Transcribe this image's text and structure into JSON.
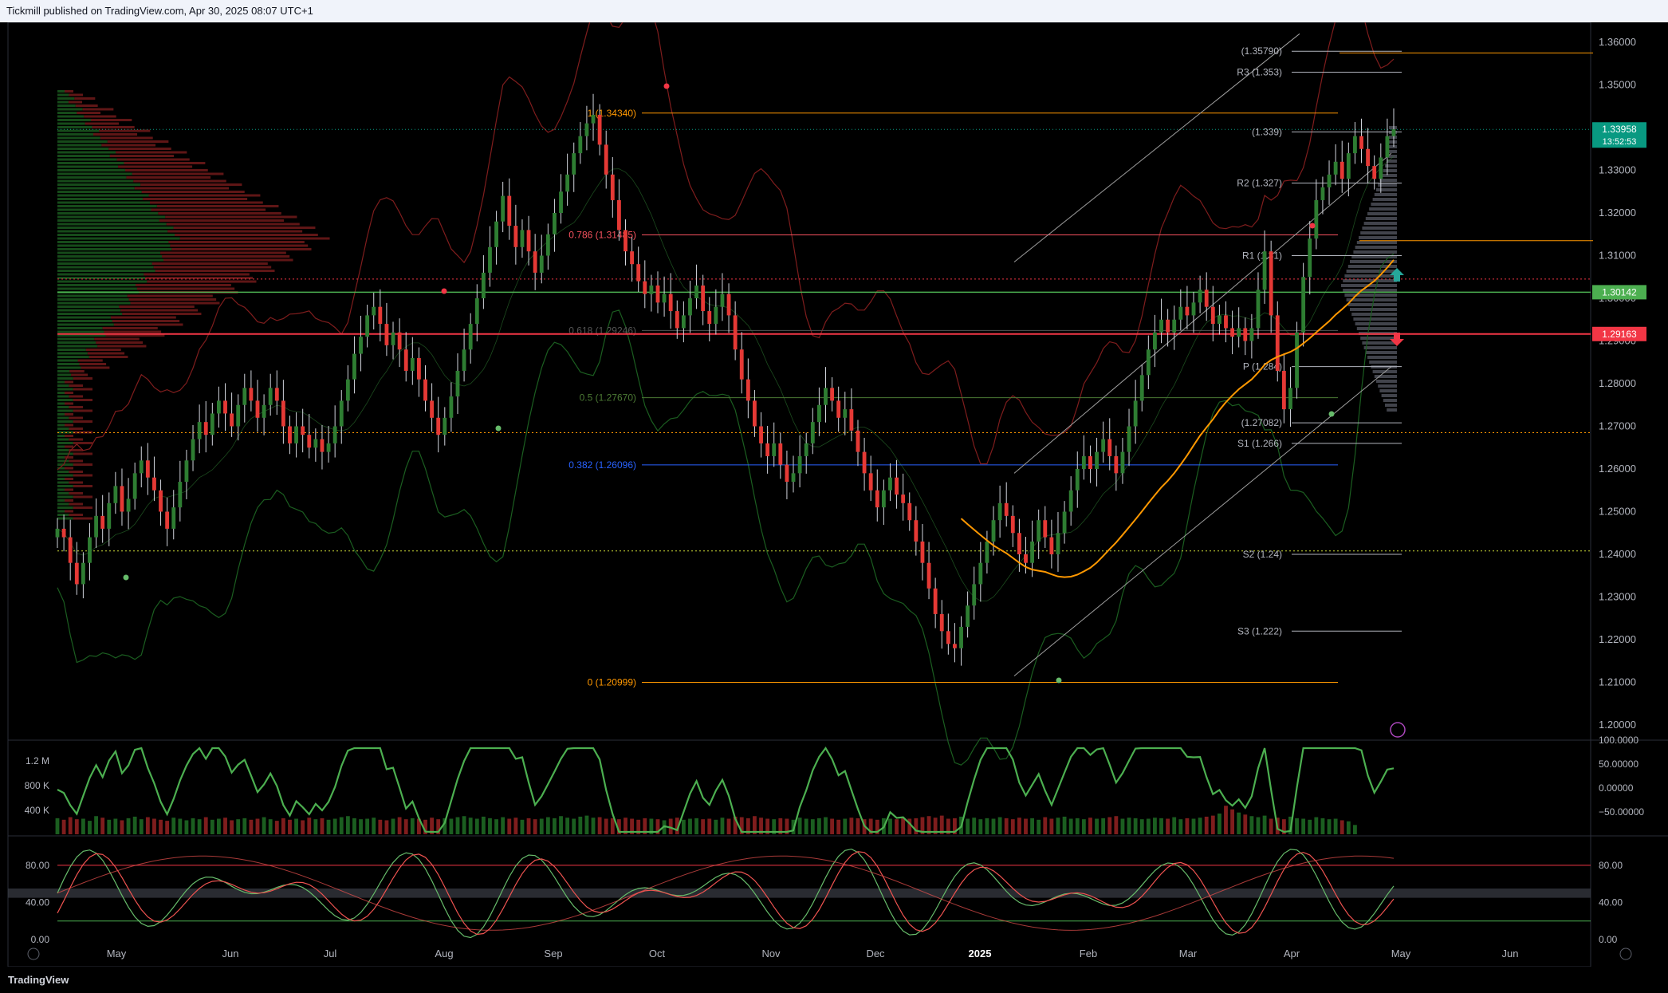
{
  "header": {
    "text": "Tickmill published on TradingView.com, Apr 30, 2025 08:07 UTC+1"
  },
  "footer": {
    "logo": "TradingView"
  },
  "colors": {
    "up": "#2e7d32",
    "down": "#e53935",
    "bg": "#000000",
    "grid": "#1e222d"
  },
  "chart_data": [
    {
      "type": "candlestick",
      "title": "",
      "price_axis": {
        "ylim": [
          1.2,
          1.36
        ],
        "ticks": [
          "1.36000",
          "1.35000",
          "1.34000",
          "1.33000",
          "1.32000",
          "1.31000",
          "1.30000",
          "1.29000",
          "1.28000",
          "1.27000",
          "1.26000",
          "1.25000",
          "1.24000",
          "1.23000",
          "1.22000",
          "1.21000",
          "1.20000"
        ]
      },
      "time_axis": {
        "labels": [
          "May",
          "Jun",
          "Jul",
          "Aug",
          "Sep",
          "Oct",
          "Nov",
          "Dec",
          "2025",
          "Feb",
          "Mar",
          "Apr",
          "May",
          "Jun"
        ]
      },
      "price_badges": [
        {
          "value": "1.33958",
          "sub": "13:52:53",
          "color": "#089981",
          "price": 1.33958
        },
        {
          "value": "1.30142",
          "color": "#4caf50",
          "price": 1.30142
        },
        {
          "value": "1.29163",
          "color": "#f23645",
          "price": 1.29163
        }
      ],
      "fib_levels": [
        {
          "label": "1 (1.34340)",
          "price": 1.3434,
          "color": "#ff9800"
        },
        {
          "label": "0.786 (1.31485)",
          "price": 1.31485,
          "color": "#f7525f"
        },
        {
          "label": "0.618 (1.29246)",
          "price": 1.29246,
          "color": "#555555"
        },
        {
          "label": "0.5 (1.27670)",
          "price": 1.2767,
          "color": "#4c7a34"
        },
        {
          "label": "0.382 (1.26096)",
          "price": 1.26096,
          "color": "#2962ff"
        },
        {
          "label": "0 (1.20999)",
          "price": 1.20999,
          "color": "#ff9800"
        }
      ],
      "pivots": [
        {
          "label": "(1.35790)",
          "price": 1.3579
        },
        {
          "label": "R3 (1.353)",
          "price": 1.353
        },
        {
          "label": "(1.339)",
          "price": 1.339
        },
        {
          "label": "R2 (1.327)",
          "price": 1.327
        },
        {
          "label": "R1 (1.31)",
          "price": 1.31
        },
        {
          "label": "P (1.284)",
          "price": 1.284
        },
        {
          "label": "(1.27082)",
          "price": 1.27082
        },
        {
          "label": "S1 (1.266)",
          "price": 1.266
        },
        {
          "label": "S2 (1.24)",
          "price": 1.24
        },
        {
          "label": "S3 (1.222)",
          "price": 1.222
        }
      ],
      "closes": [
        1.246,
        1.244,
        1.238,
        1.233,
        1.238,
        1.244,
        1.249,
        1.246,
        1.252,
        1.256,
        1.25,
        1.253,
        1.259,
        1.262,
        1.258,
        1.255,
        1.25,
        1.246,
        1.251,
        1.257,
        1.262,
        1.267,
        1.271,
        1.268,
        1.273,
        1.276,
        1.273,
        1.27,
        1.275,
        1.279,
        1.276,
        1.272,
        1.275,
        1.279,
        1.276,
        1.27,
        1.266,
        1.27,
        1.268,
        1.265,
        1.267,
        1.264,
        1.266,
        1.27,
        1.276,
        1.281,
        1.287,
        1.291,
        1.296,
        1.298,
        1.294,
        1.289,
        1.292,
        1.288,
        1.283,
        1.286,
        1.281,
        1.276,
        1.272,
        1.268,
        1.272,
        1.277,
        1.283,
        1.288,
        1.294,
        1.3,
        1.306,
        1.312,
        1.318,
        1.324,
        1.317,
        1.312,
        1.316,
        1.311,
        1.306,
        1.31,
        1.315,
        1.32,
        1.325,
        1.329,
        1.334,
        1.338,
        1.341,
        1.343,
        1.336,
        1.329,
        1.323,
        1.316,
        1.311,
        1.308,
        1.304,
        1.301,
        1.303,
        1.299,
        1.301,
        1.297,
        1.293,
        1.296,
        1.3,
        1.303,
        1.297,
        1.294,
        1.298,
        1.301,
        1.296,
        1.288,
        1.281,
        1.276,
        1.27,
        1.266,
        1.263,
        1.266,
        1.261,
        1.257,
        1.259,
        1.263,
        1.266,
        1.271,
        1.275,
        1.279,
        1.276,
        1.272,
        1.274,
        1.269,
        1.264,
        1.259,
        1.255,
        1.251,
        1.255,
        1.258,
        1.254,
        1.252,
        1.248,
        1.243,
        1.238,
        1.232,
        1.226,
        1.222,
        1.219,
        1.218,
        1.223,
        1.228,
        1.233,
        1.238,
        1.243,
        1.248,
        1.252,
        1.249,
        1.245,
        1.24,
        1.238,
        1.243,
        1.248,
        1.244,
        1.24,
        1.245,
        1.25,
        1.255,
        1.26,
        1.263,
        1.26,
        1.264,
        1.267,
        1.263,
        1.259,
        1.264,
        1.27,
        1.276,
        1.282,
        1.288,
        1.292,
        1.295,
        1.292,
        1.295,
        1.298,
        1.296,
        1.299,
        1.302,
        1.298,
        1.294,
        1.296,
        1.293,
        1.291,
        1.293,
        1.29,
        1.293,
        1.302,
        1.311,
        1.296,
        1.283,
        1.274,
        1.279,
        1.292,
        1.305,
        1.314,
        1.323,
        1.326,
        1.329,
        1.332,
        1.328,
        1.334,
        1.338,
        1.335,
        1.331,
        1.328,
        1.333,
        1.338,
        1.3396
      ],
      "volume_axis": {
        "labels": [
          "1.2 M",
          "800 K",
          "400 K"
        ]
      },
      "volume": [
        0.31,
        0.28,
        0.33,
        0.29,
        0.3,
        0.26,
        0.35,
        0.32,
        0.28,
        0.3,
        0.27,
        0.31,
        0.34,
        0.29,
        0.33,
        0.3,
        0.28,
        0.26,
        0.32,
        0.3,
        0.27,
        0.31,
        0.29,
        0.33,
        0.28,
        0.3,
        0.32,
        0.27,
        0.29,
        0.31,
        0.28,
        0.3,
        0.33,
        0.29,
        0.26,
        0.31,
        0.28,
        0.3,
        0.27,
        0.32,
        0.29,
        0.31,
        0.28,
        0.3,
        0.33,
        0.35,
        0.31,
        0.29,
        0.3,
        0.32,
        0.28,
        0.27,
        0.3,
        0.33,
        0.29,
        0.31,
        0.3,
        0.28,
        0.32,
        0.29,
        0.31,
        0.3,
        0.33,
        0.35,
        0.32,
        0.3,
        0.34,
        0.31,
        0.29,
        0.33,
        0.3,
        0.32,
        0.28,
        0.31,
        0.29,
        0.3,
        0.33,
        0.31,
        0.35,
        0.32,
        0.3,
        0.34,
        0.36,
        0.32,
        0.33,
        0.3,
        0.31,
        0.29,
        0.32,
        0.3,
        0.28,
        0.31,
        0.3,
        0.29,
        0.27,
        0.3,
        0.32,
        0.28,
        0.3,
        0.31,
        0.29,
        0.3,
        0.28,
        0.32,
        0.3,
        0.34,
        0.33,
        0.31,
        0.35,
        0.32,
        0.3,
        0.29,
        0.31,
        0.3,
        0.28,
        0.32,
        0.3,
        0.29,
        0.31,
        0.33,
        0.3,
        0.28,
        0.3,
        0.32,
        0.31,
        0.29,
        0.3,
        0.28,
        0.31,
        0.3,
        0.29,
        0.32,
        0.3,
        0.31,
        0.33,
        0.35,
        0.32,
        0.36,
        0.3,
        0.31,
        0.34,
        0.3,
        0.32,
        0.29,
        0.31,
        0.3,
        0.33,
        0.31,
        0.29,
        0.32,
        0.3,
        0.31,
        0.28,
        0.33,
        0.3,
        0.32,
        0.34,
        0.3,
        0.31,
        0.29,
        0.32,
        0.3,
        0.31,
        0.33,
        0.35,
        0.3,
        0.32,
        0.31,
        0.29,
        0.3,
        0.32,
        0.31,
        0.3,
        0.33,
        0.29,
        0.31,
        0.3,
        0.32,
        0.34,
        0.36,
        0.4,
        0.55,
        0.48,
        0.42,
        0.38,
        0.35,
        0.33,
        0.36,
        0.3,
        0.32,
        0.29,
        0.34,
        0.31,
        0.3,
        0.28,
        0.33,
        0.31,
        0.29,
        0.3,
        0.27,
        0.25,
        0.18
      ],
      "osc1_axis": {
        "labels": [
          "100.0000",
          "50.00000",
          "0.00000",
          "−50.00000"
        ]
      },
      "osc2_axis": {
        "labels": [
          "80.00",
          "40.00",
          "0.00"
        ]
      }
    }
  ]
}
